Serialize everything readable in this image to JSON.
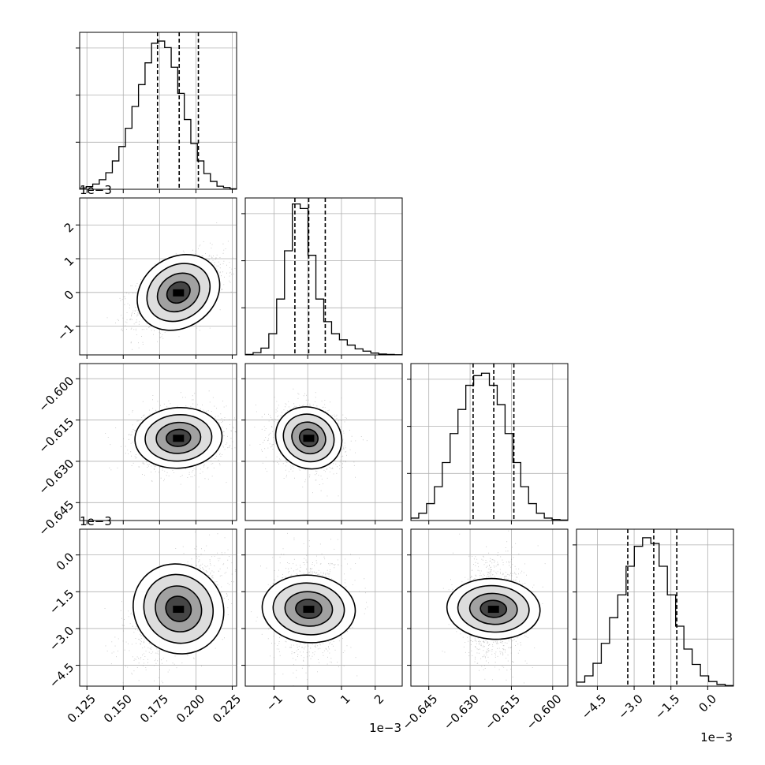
{
  "colors": {
    "ink": "#000000",
    "grid": "#b0b0b0",
    "scatter": "#7f7f7f"
  },
  "chart_data": {
    "type": "corner",
    "parameters": 4,
    "offset_labels": {
      "p1_y": "1e−3",
      "p3_y": "1e−3",
      "p1_x": "1e−3",
      "p3_x": "1e−3"
    },
    "ranges": [
      [
        0.12,
        0.228
      ],
      [
        -1.85,
        2.8
      ],
      [
        -0.6515,
        -0.5945
      ],
      [
        -5.35,
        1.05
      ]
    ],
    "ticks": [
      [
        "0.125",
        "0.150",
        "0.175",
        "0.200",
        "0.225"
      ],
      [
        "−1",
        "0",
        "1",
        "2"
      ],
      [
        "−0.645",
        "−0.630",
        "−0.615",
        "−0.600"
      ],
      [
        "−4.5",
        "−3.0",
        "−1.5",
        "0.0"
      ]
    ],
    "tick_values": [
      [
        0.125,
        0.15,
        0.175,
        0.2,
        0.225
      ],
      [
        -1,
        0,
        1,
        2
      ],
      [
        -0.645,
        -0.63,
        -0.615,
        -0.6
      ],
      [
        -4.5,
        -3.0,
        -1.5,
        0.0
      ]
    ],
    "quantiles": [
      [
        0.1736,
        0.1885,
        0.2017
      ],
      [
        -0.38,
        0.03,
        0.52
      ],
      [
        -0.6289,
        -0.6214,
        -0.6141
      ],
      [
        -3.26,
        -2.2,
        -1.26
      ]
    ],
    "histograms": [
      [
        0.3,
        0.6,
        1.2,
        2.2,
        3.8,
        6.5,
        9.8,
        14,
        19,
        24,
        29,
        33.5,
        34,
        32.5,
        28,
        22,
        16,
        10.5,
        6.5,
        3.6,
        1.8,
        0.7,
        0.4,
        0.1
      ],
      [
        0.3,
        1.5,
        4.5,
        14,
        37,
        69,
        100,
        97,
        66,
        37,
        22,
        14,
        10,
        6.5,
        4,
        2.5,
        1.2,
        0.6,
        0.3,
        0.1
      ],
      [
        0.5,
        1.5,
        3.5,
        7,
        12,
        18,
        23,
        28,
        30,
        30.5,
        28,
        24,
        18,
        12,
        7,
        3.5,
        1.5,
        0.5,
        0.2,
        0.1
      ],
      [
        0.7,
        1.8,
        4,
        7.5,
        12,
        16,
        21,
        24.5,
        26,
        25,
        21,
        16,
        10.5,
        6.5,
        3.8,
        1.8,
        0.8,
        0.3,
        0.1
      ]
    ],
    "hist_ymax": [
      36,
      104,
      32.5,
      27.5
    ],
    "covariance_pairs": [
      {
        "row": 1,
        "col": 0,
        "mean": [
          0.188,
          0.0
        ],
        "sd": [
          0.015,
          0.52
        ],
        "rho": 0.5
      },
      {
        "row": 2,
        "col": 0,
        "mean": [
          0.188,
          -0.6215
        ],
        "sd": [
          0.015,
          0.0055
        ],
        "rho": 0.05
      },
      {
        "row": 2,
        "col": 1,
        "mean": [
          0.03,
          -0.6215
        ],
        "sd": [
          0.5,
          0.0055
        ],
        "rho": -0.15
      },
      {
        "row": 3,
        "col": 0,
        "mean": [
          0.188,
          -2.2
        ],
        "sd": [
          0.015,
          0.95
        ],
        "rho": 0.55
      },
      {
        "row": 3,
        "col": 1,
        "mean": [
          0.03,
          -2.2
        ],
        "sd": [
          0.5,
          0.95
        ],
        "rho": 0.05
      },
      {
        "row": 3,
        "col": 2,
        "mean": [
          -0.6215,
          -2.2
        ],
        "sd": [
          0.0055,
          0.95
        ],
        "rho": 0.05
      }
    ]
  }
}
